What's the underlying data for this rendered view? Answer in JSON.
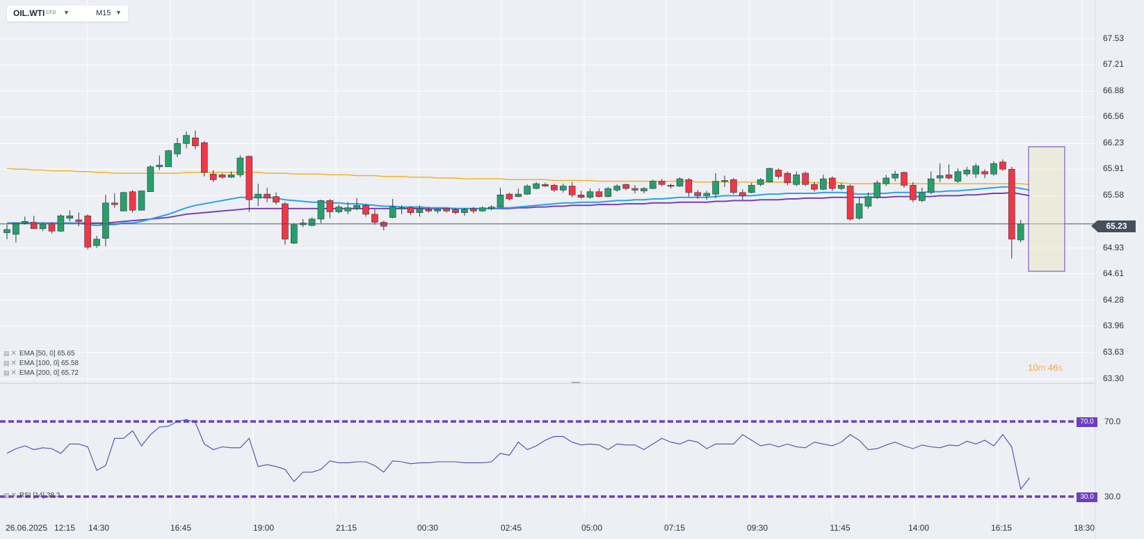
{
  "toolbar": {
    "symbol": "OIL.WTI",
    "instrument_type": "CFD",
    "timeframe": "M15",
    "caret_icon": "chevron-down-icon"
  },
  "colors": {
    "background": "#eceff3",
    "bull": "#26a06b",
    "bear": "#f23645",
    "ema50": "#2ba1e6",
    "ema100": "#7b3fb3",
    "ema200": "#f5b11f",
    "rsi_line": "#4b4ca6",
    "rsi_levels": "#6a3fc0",
    "countdown": "#f4a23c"
  },
  "indicators": {
    "ema50": {
      "label": "EMA",
      "params": "[50, 0]",
      "value": "65.65"
    },
    "ema100": {
      "label": "EMA",
      "params": "[100, 0]",
      "value": "65.58"
    },
    "ema200": {
      "label": "EMA",
      "params": "[200, 0]",
      "value": "65.72"
    },
    "rsi": {
      "label": "RSI",
      "params": "[14]",
      "value": "38.3"
    }
  },
  "countdown": {
    "minutes": "10",
    "minutes_unit": "m",
    "seconds": "46",
    "seconds_unit": "s"
  },
  "current_price": "65.23",
  "rsi_levels": {
    "upper": "70.0",
    "lower": "30.0"
  },
  "chart_data": {
    "type": "candlestick",
    "symbol": "OIL.WTI",
    "timeframe": "M15",
    "y_ticks": [
      "67.53",
      "67.21",
      "66.88",
      "66.56",
      "66.23",
      "65.91",
      "65.58",
      "65.23",
      "64.93",
      "64.61",
      "64.28",
      "63.96",
      "63.63",
      "63.30"
    ],
    "x_ticks": [
      "26.06.2025",
      "12:15",
      "14:30",
      "16:45",
      "19:00",
      "21:15",
      "00:30",
      "02:45",
      "05:00",
      "07:15",
      "09:30",
      "11:45",
      "14:00",
      "16:15",
      "18:30"
    ],
    "ylim": [
      63.3,
      67.53
    ],
    "current_price": 65.23,
    "candles": [
      {
        "o": 65.12,
        "h": 65.22,
        "l": 65.04,
        "c": 65.16
      },
      {
        "o": 65.1,
        "h": 65.24,
        "l": 65.0,
        "c": 65.24
      },
      {
        "o": 65.24,
        "h": 65.32,
        "l": 65.22,
        "c": 65.26
      },
      {
        "o": 65.25,
        "h": 65.33,
        "l": 65.18,
        "c": 65.17
      },
      {
        "o": 65.17,
        "h": 65.25,
        "l": 65.14,
        "c": 65.23
      },
      {
        "o": 65.23,
        "h": 65.25,
        "l": 65.11,
        "c": 65.14
      },
      {
        "o": 65.14,
        "h": 65.35,
        "l": 65.13,
        "c": 65.33
      },
      {
        "o": 65.3,
        "h": 65.4,
        "l": 65.26,
        "c": 65.33
      },
      {
        "o": 65.28,
        "h": 65.37,
        "l": 65.2,
        "c": 65.26
      },
      {
        "o": 65.33,
        "h": 65.35,
        "l": 64.91,
        "c": 64.94
      },
      {
        "o": 64.96,
        "h": 65.08,
        "l": 64.93,
        "c": 65.04
      },
      {
        "o": 65.05,
        "h": 65.59,
        "l": 64.95,
        "c": 65.49
      },
      {
        "o": 65.49,
        "h": 65.61,
        "l": 65.43,
        "c": 65.47
      },
      {
        "o": 65.39,
        "h": 65.63,
        "l": 65.39,
        "c": 65.62
      },
      {
        "o": 65.63,
        "h": 65.65,
        "l": 65.37,
        "c": 65.4
      },
      {
        "o": 65.4,
        "h": 65.64,
        "l": 65.4,
        "c": 65.64
      },
      {
        "o": 65.63,
        "h": 65.96,
        "l": 65.63,
        "c": 65.94
      },
      {
        "o": 65.94,
        "h": 66.08,
        "l": 65.9,
        "c": 65.96
      },
      {
        "o": 65.94,
        "h": 66.15,
        "l": 65.94,
        "c": 66.14
      },
      {
        "o": 66.1,
        "h": 66.3,
        "l": 66.06,
        "c": 66.23
      },
      {
        "o": 66.23,
        "h": 66.38,
        "l": 66.17,
        "c": 66.33
      },
      {
        "o": 66.3,
        "h": 66.39,
        "l": 66.16,
        "c": 66.2
      },
      {
        "o": 66.24,
        "h": 66.26,
        "l": 65.82,
        "c": 65.87
      },
      {
        "o": 65.85,
        "h": 65.9,
        "l": 65.75,
        "c": 65.78
      },
      {
        "o": 65.84,
        "h": 65.86,
        "l": 65.79,
        "c": 65.81
      },
      {
        "o": 65.81,
        "h": 65.88,
        "l": 65.8,
        "c": 65.84
      },
      {
        "o": 65.84,
        "h": 66.08,
        "l": 65.81,
        "c": 66.05
      },
      {
        "o": 66.07,
        "h": 66.08,
        "l": 65.38,
        "c": 65.53
      },
      {
        "o": 65.55,
        "h": 65.73,
        "l": 65.45,
        "c": 65.6
      },
      {
        "o": 65.6,
        "h": 65.68,
        "l": 65.5,
        "c": 65.55
      },
      {
        "o": 65.57,
        "h": 65.62,
        "l": 65.47,
        "c": 65.5
      },
      {
        "o": 65.48,
        "h": 65.5,
        "l": 64.97,
        "c": 65.04
      },
      {
        "o": 64.99,
        "h": 65.24,
        "l": 64.98,
        "c": 65.22
      },
      {
        "o": 65.22,
        "h": 65.29,
        "l": 65.19,
        "c": 65.24
      },
      {
        "o": 65.21,
        "h": 65.31,
        "l": 65.2,
        "c": 65.29
      },
      {
        "o": 65.29,
        "h": 65.53,
        "l": 65.24,
        "c": 65.52
      },
      {
        "o": 65.52,
        "h": 65.54,
        "l": 65.3,
        "c": 65.38
      },
      {
        "o": 65.38,
        "h": 65.47,
        "l": 65.36,
        "c": 65.44
      },
      {
        "o": 65.39,
        "h": 65.5,
        "l": 65.35,
        "c": 65.43
      },
      {
        "o": 65.42,
        "h": 65.55,
        "l": 65.4,
        "c": 65.46
      },
      {
        "o": 65.46,
        "h": 65.48,
        "l": 65.32,
        "c": 65.35
      },
      {
        "o": 65.35,
        "h": 65.41,
        "l": 65.22,
        "c": 65.25
      },
      {
        "o": 65.25,
        "h": 65.27,
        "l": 65.15,
        "c": 65.2
      },
      {
        "o": 65.31,
        "h": 65.54,
        "l": 65.3,
        "c": 65.44
      },
      {
        "o": 65.42,
        "h": 65.46,
        "l": 65.35,
        "c": 65.43
      },
      {
        "o": 65.43,
        "h": 65.45,
        "l": 65.34,
        "c": 65.37
      },
      {
        "o": 65.37,
        "h": 65.46,
        "l": 65.32,
        "c": 65.42
      },
      {
        "o": 65.41,
        "h": 65.44,
        "l": 65.37,
        "c": 65.39
      },
      {
        "o": 65.39,
        "h": 65.42,
        "l": 65.36,
        "c": 65.41
      },
      {
        "o": 65.42,
        "h": 65.43,
        "l": 65.37,
        "c": 65.39
      },
      {
        "o": 65.41,
        "h": 65.43,
        "l": 65.35,
        "c": 65.37
      },
      {
        "o": 65.37,
        "h": 65.43,
        "l": 65.33,
        "c": 65.41
      },
      {
        "o": 65.42,
        "h": 65.44,
        "l": 65.36,
        "c": 65.39
      },
      {
        "o": 65.39,
        "h": 65.45,
        "l": 65.38,
        "c": 65.43
      },
      {
        "o": 65.42,
        "h": 65.46,
        "l": 65.4,
        "c": 65.44
      },
      {
        "o": 65.44,
        "h": 65.68,
        "l": 65.44,
        "c": 65.59
      },
      {
        "o": 65.6,
        "h": 65.62,
        "l": 65.52,
        "c": 65.54
      },
      {
        "o": 65.57,
        "h": 65.67,
        "l": 65.56,
        "c": 65.6
      },
      {
        "o": 65.6,
        "h": 65.72,
        "l": 65.59,
        "c": 65.7
      },
      {
        "o": 65.67,
        "h": 65.75,
        "l": 65.66,
        "c": 65.73
      },
      {
        "o": 65.72,
        "h": 65.74,
        "l": 65.69,
        "c": 65.7
      },
      {
        "o": 65.71,
        "h": 65.73,
        "l": 65.63,
        "c": 65.65
      },
      {
        "o": 65.65,
        "h": 65.73,
        "l": 65.62,
        "c": 65.7
      },
      {
        "o": 65.7,
        "h": 65.75,
        "l": 65.56,
        "c": 65.59
      },
      {
        "o": 65.59,
        "h": 65.64,
        "l": 65.54,
        "c": 65.56
      },
      {
        "o": 65.56,
        "h": 65.67,
        "l": 65.54,
        "c": 65.63
      },
      {
        "o": 65.63,
        "h": 65.67,
        "l": 65.56,
        "c": 65.57
      },
      {
        "o": 65.57,
        "h": 65.69,
        "l": 65.56,
        "c": 65.67
      },
      {
        "o": 65.65,
        "h": 65.72,
        "l": 65.63,
        "c": 65.7
      },
      {
        "o": 65.72,
        "h": 65.73,
        "l": 65.65,
        "c": 65.67
      },
      {
        "o": 65.67,
        "h": 65.71,
        "l": 65.61,
        "c": 65.65
      },
      {
        "o": 65.64,
        "h": 65.69,
        "l": 65.61,
        "c": 65.67
      },
      {
        "o": 65.67,
        "h": 65.78,
        "l": 65.66,
        "c": 65.76
      },
      {
        "o": 65.76,
        "h": 65.79,
        "l": 65.7,
        "c": 65.72
      },
      {
        "o": 65.71,
        "h": 65.73,
        "l": 65.67,
        "c": 65.7
      },
      {
        "o": 65.7,
        "h": 65.81,
        "l": 65.69,
        "c": 65.79
      },
      {
        "o": 65.78,
        "h": 65.8,
        "l": 65.57,
        "c": 65.62
      },
      {
        "o": 65.62,
        "h": 65.65,
        "l": 65.54,
        "c": 65.58
      },
      {
        "o": 65.58,
        "h": 65.64,
        "l": 65.53,
        "c": 65.61
      },
      {
        "o": 65.6,
        "h": 65.86,
        "l": 65.55,
        "c": 65.76
      },
      {
        "o": 65.76,
        "h": 65.83,
        "l": 65.69,
        "c": 65.77
      },
      {
        "o": 65.78,
        "h": 65.8,
        "l": 65.6,
        "c": 65.62
      },
      {
        "o": 65.62,
        "h": 65.66,
        "l": 65.53,
        "c": 65.58
      },
      {
        "o": 65.62,
        "h": 65.74,
        "l": 65.61,
        "c": 65.71
      },
      {
        "o": 65.72,
        "h": 65.8,
        "l": 65.7,
        "c": 65.78
      },
      {
        "o": 65.75,
        "h": 65.93,
        "l": 65.74,
        "c": 65.92
      },
      {
        "o": 65.9,
        "h": 65.92,
        "l": 65.79,
        "c": 65.82
      },
      {
        "o": 65.86,
        "h": 65.88,
        "l": 65.71,
        "c": 65.74
      },
      {
        "o": 65.72,
        "h": 65.88,
        "l": 65.7,
        "c": 65.84
      },
      {
        "o": 65.86,
        "h": 65.88,
        "l": 65.7,
        "c": 65.72
      },
      {
        "o": 65.72,
        "h": 65.75,
        "l": 65.63,
        "c": 65.66
      },
      {
        "o": 65.66,
        "h": 65.84,
        "l": 65.65,
        "c": 65.79
      },
      {
        "o": 65.8,
        "h": 65.82,
        "l": 65.64,
        "c": 65.67
      },
      {
        "o": 65.67,
        "h": 65.74,
        "l": 65.65,
        "c": 65.71
      },
      {
        "o": 65.7,
        "h": 65.72,
        "l": 65.27,
        "c": 65.29
      },
      {
        "o": 65.3,
        "h": 65.56,
        "l": 65.28,
        "c": 65.48
      },
      {
        "o": 65.45,
        "h": 65.62,
        "l": 65.42,
        "c": 65.57
      },
      {
        "o": 65.56,
        "h": 65.77,
        "l": 65.54,
        "c": 65.74
      },
      {
        "o": 65.73,
        "h": 65.84,
        "l": 65.7,
        "c": 65.8
      },
      {
        "o": 65.8,
        "h": 65.89,
        "l": 65.76,
        "c": 65.85
      },
      {
        "o": 65.87,
        "h": 65.88,
        "l": 65.68,
        "c": 65.71
      },
      {
        "o": 65.71,
        "h": 65.75,
        "l": 65.5,
        "c": 65.53
      },
      {
        "o": 65.52,
        "h": 65.68,
        "l": 65.5,
        "c": 65.62
      },
      {
        "o": 65.62,
        "h": 65.88,
        "l": 65.6,
        "c": 65.79
      },
      {
        "o": 65.8,
        "h": 65.98,
        "l": 65.75,
        "c": 65.83
      },
      {
        "o": 65.84,
        "h": 65.97,
        "l": 65.78,
        "c": 65.8
      },
      {
        "o": 65.76,
        "h": 65.92,
        "l": 65.74,
        "c": 65.88
      },
      {
        "o": 65.85,
        "h": 65.94,
        "l": 65.82,
        "c": 65.9
      },
      {
        "o": 65.85,
        "h": 65.98,
        "l": 65.8,
        "c": 65.95
      },
      {
        "o": 65.88,
        "h": 65.91,
        "l": 65.8,
        "c": 65.85
      },
      {
        "o": 65.85,
        "h": 66.01,
        "l": 65.83,
        "c": 65.98
      },
      {
        "o": 66.0,
        "h": 66.03,
        "l": 65.89,
        "c": 65.91
      },
      {
        "o": 65.91,
        "h": 65.94,
        "l": 64.8,
        "c": 65.04
      },
      {
        "o": 65.03,
        "h": 65.28,
        "l": 65.0,
        "c": 65.23
      }
    ],
    "ema50_values": [
      65.24,
      65.24,
      65.24,
      65.24,
      65.24,
      65.23,
      65.24,
      65.24,
      65.24,
      65.22,
      65.21,
      65.22,
      65.22,
      65.24,
      65.24,
      65.26,
      65.29,
      65.32,
      65.35,
      65.39,
      65.43,
      65.46,
      65.48,
      65.5,
      65.52,
      65.54,
      65.56,
      65.56,
      65.56,
      65.56,
      65.55,
      65.53,
      65.52,
      65.51,
      65.5,
      65.5,
      65.49,
      65.49,
      65.48,
      65.48,
      65.47,
      65.46,
      65.45,
      65.45,
      65.44,
      65.44,
      65.44,
      65.43,
      65.43,
      65.43,
      65.42,
      65.42,
      65.42,
      65.42,
      65.42,
      65.43,
      65.43,
      65.44,
      65.45,
      65.46,
      65.47,
      65.48,
      65.49,
      65.49,
      65.5,
      65.5,
      65.5,
      65.51,
      65.52,
      65.52,
      65.53,
      65.53,
      65.54,
      65.54,
      65.55,
      65.56,
      65.56,
      65.56,
      65.56,
      65.57,
      65.58,
      65.58,
      65.58,
      65.58,
      65.59,
      65.6,
      65.6,
      65.61,
      65.61,
      65.61,
      65.61,
      65.62,
      65.62,
      65.62,
      65.61,
      65.6,
      65.6,
      65.61,
      65.61,
      65.62,
      65.62,
      65.62,
      65.62,
      65.63,
      65.63,
      65.64,
      65.64,
      65.65,
      65.66,
      65.67,
      65.68,
      65.69,
      65.69,
      65.67,
      65.65
    ],
    "ema100_values": [
      65.24,
      65.24,
      65.24,
      65.24,
      65.24,
      65.24,
      65.24,
      65.24,
      65.24,
      65.24,
      65.24,
      65.24,
      65.25,
      65.26,
      65.27,
      65.28,
      65.29,
      65.3,
      65.31,
      65.33,
      65.35,
      65.36,
      65.37,
      65.38,
      65.39,
      65.4,
      65.41,
      65.42,
      65.42,
      65.42,
      65.42,
      65.42,
      65.42,
      65.42,
      65.42,
      65.42,
      65.42,
      65.42,
      65.42,
      65.42,
      65.42,
      65.42,
      65.42,
      65.42,
      65.42,
      65.42,
      65.42,
      65.42,
      65.42,
      65.42,
      65.42,
      65.42,
      65.42,
      65.42,
      65.42,
      65.42,
      65.42,
      65.43,
      65.43,
      65.44,
      65.44,
      65.45,
      65.45,
      65.46,
      65.46,
      65.46,
      65.47,
      65.47,
      65.47,
      65.48,
      65.48,
      65.48,
      65.49,
      65.49,
      65.49,
      65.5,
      65.5,
      65.5,
      65.5,
      65.51,
      65.51,
      65.52,
      65.52,
      65.52,
      65.53,
      65.53,
      65.53,
      65.54,
      65.54,
      65.55,
      65.55,
      65.55,
      65.56,
      65.56,
      65.56,
      65.56,
      65.56,
      65.56,
      65.56,
      65.57,
      65.57,
      65.57,
      65.57,
      65.57,
      65.58,
      65.58,
      65.58,
      65.59,
      65.59,
      65.6,
      65.61,
      65.61,
      65.62,
      65.6,
      65.58
    ],
    "ema200_values": [
      65.92,
      65.91,
      65.91,
      65.9,
      65.9,
      65.89,
      65.89,
      65.89,
      65.88,
      65.88,
      65.87,
      65.87,
      65.86,
      65.86,
      65.86,
      65.86,
      65.86,
      65.86,
      65.86,
      65.86,
      65.87,
      65.87,
      65.87,
      65.87,
      65.87,
      65.87,
      65.87,
      65.87,
      65.87,
      65.86,
      65.86,
      65.86,
      65.85,
      65.85,
      65.85,
      65.85,
      65.84,
      65.84,
      65.84,
      65.83,
      65.83,
      65.83,
      65.82,
      65.82,
      65.82,
      65.81,
      65.81,
      65.81,
      65.8,
      65.8,
      65.8,
      65.79,
      65.79,
      65.79,
      65.79,
      65.79,
      65.78,
      65.78,
      65.78,
      65.78,
      65.78,
      65.77,
      65.77,
      65.77,
      65.77,
      65.77,
      65.76,
      65.76,
      65.76,
      65.76,
      65.76,
      65.76,
      65.76,
      65.76,
      65.76,
      65.76,
      65.76,
      65.75,
      65.75,
      65.75,
      65.75,
      65.75,
      65.75,
      65.75,
      65.75,
      65.75,
      65.75,
      65.75,
      65.75,
      65.75,
      65.74,
      65.74,
      65.74,
      65.74,
      65.73,
      65.73,
      65.73,
      65.73,
      65.73,
      65.73,
      65.73,
      65.73,
      65.73,
      65.73,
      65.73,
      65.73,
      65.73,
      65.73,
      65.73,
      65.73,
      65.73,
      65.73,
      65.73,
      65.73,
      65.72
    ],
    "rsi": {
      "levels": [
        70,
        30
      ],
      "values": [
        53,
        55.5,
        57,
        55,
        56,
        55.5,
        53,
        58,
        58,
        56.5,
        44,
        46.5,
        61,
        61,
        65,
        57,
        63,
        67,
        67.5,
        70,
        71,
        69.5,
        58,
        55,
        56.5,
        56,
        56,
        61,
        46,
        47,
        46,
        44.5,
        38,
        43,
        43,
        44.5,
        49,
        48,
        48,
        48.5,
        48.5,
        46.5,
        43,
        49,
        48.5,
        47.5,
        48,
        48,
        48.5,
        48.5,
        48.5,
        48,
        48,
        48,
        48.5,
        53,
        52,
        59,
        55,
        57,
        60,
        62,
        62,
        59,
        57.5,
        58,
        57.5,
        55,
        58,
        57.5,
        57.5,
        55,
        58,
        61,
        59,
        58,
        60,
        59,
        55.5,
        58,
        58,
        58,
        63,
        60,
        57,
        58,
        56.5,
        58,
        56.5,
        56,
        59,
        58,
        57,
        59,
        63,
        60,
        55,
        55.5,
        57.5,
        59,
        57,
        55.5,
        57.5,
        56.5,
        56,
        57.5,
        57,
        59.5,
        58,
        60,
        57,
        63,
        56.5,
        34,
        40
      ],
      "ylim": [
        0,
        100
      ]
    }
  }
}
